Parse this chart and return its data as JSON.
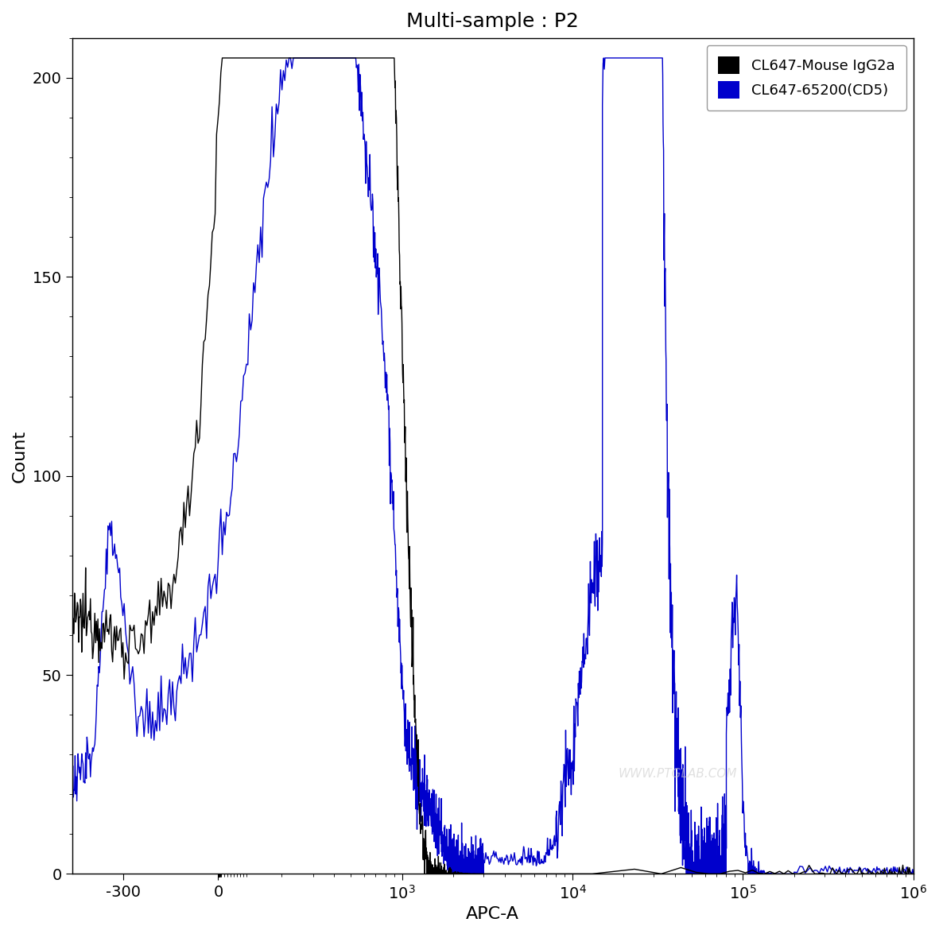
{
  "title": "Multi-sample : P2",
  "xlabel": "APC-A",
  "ylabel": "Count",
  "ylim": [
    0,
    210
  ],
  "yticks": [
    0,
    50,
    100,
    150,
    200
  ],
  "legend_labels": [
    "CL647-Mouse IgG2a",
    "CL647-65200(CD5)"
  ],
  "legend_colors": [
    "#000000",
    "#0000cc"
  ],
  "watermark": "WWW.PTGLAB.COM",
  "background_color": "#ffffff",
  "line_color_black": "#000000",
  "line_color_blue": "#0000cc",
  "title_fontsize": 18,
  "axis_label_fontsize": 16,
  "tick_fontsize": 14,
  "linthresh": 300,
  "linscale": 0.5,
  "xlim_left": -600,
  "xlim_right": 1000000
}
